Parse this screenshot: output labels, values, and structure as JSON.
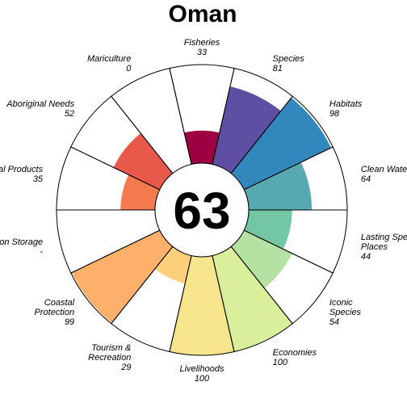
{
  "chart_data": {
    "type": "flower",
    "title": "Oman",
    "score": "63",
    "max": 100,
    "petals": [
      {
        "name": "Fisheries",
        "label_lines": [
          "Fisheries"
        ],
        "value": 33,
        "display": "33",
        "color": "#9e0142"
      },
      {
        "name": "Species",
        "label_lines": [
          "Species"
        ],
        "value": 81,
        "display": "81",
        "color": "#5e4fa2"
      },
      {
        "name": "Habitats",
        "label_lines": [
          "Habitats"
        ],
        "value": 98,
        "display": "98",
        "color": "#3288bd"
      },
      {
        "name": "Clean Waters",
        "label_lines": [
          "Clean Waters"
        ],
        "value": 64,
        "display": "64",
        "color": "#56a9b0"
      },
      {
        "name": "Lasting Special Places",
        "label_lines": [
          "Lasting Special",
          "Places"
        ],
        "value": 44,
        "display": "44",
        "color": "#74c7a5"
      },
      {
        "name": "Iconic Species",
        "label_lines": [
          "Iconic",
          "Species"
        ],
        "value": 54,
        "display": "54",
        "color": "#b5e2a2"
      },
      {
        "name": "Economies",
        "label_lines": [
          "Economies"
        ],
        "value": 100,
        "display": "100",
        "color": "#d9ef9b"
      },
      {
        "name": "Livelihoods",
        "label_lines": [
          "Livelihoods"
        ],
        "value": 100,
        "display": "100",
        "color": "#f6e58d"
      },
      {
        "name": "Tourism & Recreation",
        "label_lines": [
          "Tourism &",
          "Recreation"
        ],
        "value": 29,
        "display": "29",
        "color": "#fdd07c"
      },
      {
        "name": "Coastal Protection",
        "label_lines": [
          "Coastal",
          "Protection"
        ],
        "value": 99,
        "display": "99",
        "color": "#fdb06a"
      },
      {
        "name": "Carbon Storage",
        "label_lines": [
          "Carbon Storage"
        ],
        "value": 0,
        "display": "-",
        "color": "#f98e52"
      },
      {
        "name": "Natural Products",
        "label_lines": [
          "Natural Products"
        ],
        "value": 35,
        "display": "35",
        "color": "#f47a4e"
      },
      {
        "name": "Aboriginal Needs",
        "label_lines": [
          "Aboriginal Needs"
        ],
        "value": 52,
        "display": "52",
        "color": "#e8594a"
      },
      {
        "name": "Mariculture",
        "label_lines": [
          "Mariculture"
        ],
        "value": 0,
        "display": "0",
        "color": "#d53e4f"
      }
    ]
  }
}
